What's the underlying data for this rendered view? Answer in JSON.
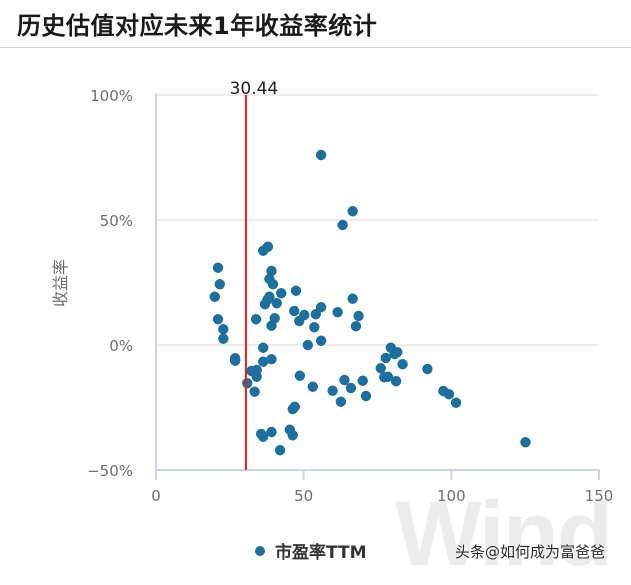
{
  "header": {
    "title": "历史估值对应未来1年收益率统计"
  },
  "watermark": "Wind",
  "credit": "头条@如何成为富爸爸",
  "legend": {
    "label": "市盈率TTM",
    "color": "#1f6f9c"
  },
  "colors": {
    "point": "#1f6f9c",
    "reference_line": "#e02020",
    "grid": "#e6e6e6",
    "axis": "#c9d6e8"
  },
  "chart_data": {
    "type": "scatter",
    "title": "历史估值对应未来1年收益率统计",
    "xlabel": "",
    "ylabel": "收益率",
    "xlim": [
      0,
      150
    ],
    "ylim": [
      -50,
      100
    ],
    "x_ticks": [
      "0",
      "50",
      "100",
      "150"
    ],
    "y_ticks": [
      "100%",
      "50%",
      "0%",
      "-50%"
    ],
    "grid": "horizontal",
    "legend_position": "bottom",
    "reference_line": {
      "axis": "x",
      "value": 30.44,
      "label": "30.44",
      "color": "#e02020"
    },
    "series": [
      {
        "name": "市盈率TTM",
        "points": [
          [
            55.9,
            76
          ],
          [
            66.6,
            53.5
          ],
          [
            63.2,
            48
          ],
          [
            36.3,
            37.7
          ],
          [
            37.9,
            39.3
          ],
          [
            21.0,
            30.9
          ],
          [
            21.6,
            24.3
          ],
          [
            19.9,
            19.3
          ],
          [
            39.1,
            29.6
          ],
          [
            38.4,
            26.4
          ],
          [
            39.6,
            24.3
          ],
          [
            42.4,
            20.7
          ],
          [
            47.4,
            21.7
          ],
          [
            38.4,
            19.3
          ],
          [
            36.9,
            16.3
          ],
          [
            40.9,
            16.7
          ],
          [
            37.7,
            18.0
          ],
          [
            46.8,
            13.6
          ],
          [
            50.2,
            12.0
          ],
          [
            48.5,
            9.6
          ],
          [
            54.1,
            12.3
          ],
          [
            55.9,
            15.1
          ],
          [
            61.5,
            13.1
          ],
          [
            66.6,
            18.5
          ],
          [
            68.6,
            11.6
          ],
          [
            67.7,
            7.5
          ],
          [
            53.6,
            7.1
          ],
          [
            55.9,
            1.7
          ],
          [
            51.4,
            0.0
          ],
          [
            33.9,
            10.3
          ],
          [
            40.2,
            10.7
          ],
          [
            39.1,
            7.7
          ],
          [
            21.0,
            10.3
          ],
          [
            22.8,
            6.3
          ],
          [
            22.8,
            2.5
          ],
          [
            36.3,
            -1.1
          ],
          [
            26.8,
            -5.3
          ],
          [
            26.8,
            -6.3
          ],
          [
            36.3,
            -6.7
          ],
          [
            39.1,
            -5.7
          ],
          [
            32.3,
            -10.4
          ],
          [
            34.1,
            -10.0
          ],
          [
            34.1,
            -12.7
          ],
          [
            30.9,
            -15.3
          ],
          [
            33.4,
            -18.7
          ],
          [
            48.7,
            -12.3
          ],
          [
            53.1,
            -16.7
          ],
          [
            59.8,
            -18.3
          ],
          [
            63.8,
            -14.0
          ],
          [
            66.0,
            -17.2
          ],
          [
            62.6,
            -22.7
          ],
          [
            70.0,
            -14.3
          ],
          [
            71.1,
            -20.4
          ],
          [
            79.5,
            -1.1
          ],
          [
            81.7,
            -2.9
          ],
          [
            80.8,
            -3.6
          ],
          [
            77.8,
            -5.2
          ],
          [
            83.5,
            -7.7
          ],
          [
            76.1,
            -9.3
          ],
          [
            77.3,
            -12.9
          ],
          [
            78.5,
            -12.7
          ],
          [
            81.3,
            -14.5
          ],
          [
            91.9,
            -9.6
          ],
          [
            97.3,
            -18.4
          ],
          [
            99.2,
            -19.7
          ],
          [
            101.6,
            -23.1
          ],
          [
            47.0,
            -24.7
          ],
          [
            46.3,
            -25.6
          ],
          [
            35.6,
            -35.6
          ],
          [
            36.3,
            -36.7
          ],
          [
            39.1,
            -34.8
          ],
          [
            45.3,
            -33.9
          ],
          [
            46.3,
            -36.1
          ],
          [
            42.0,
            -42.1
          ],
          [
            125.1,
            -38.9
          ]
        ]
      }
    ]
  }
}
